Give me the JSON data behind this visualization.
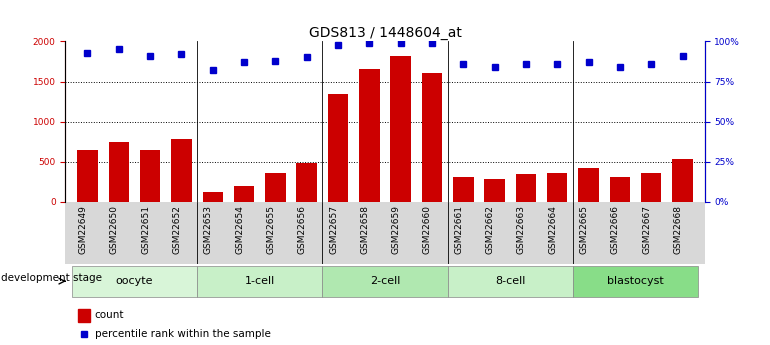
{
  "title": "GDS813 / 1448604_at",
  "samples": [
    "GSM22649",
    "GSM22650",
    "GSM22651",
    "GSM22652",
    "GSM22653",
    "GSM22654",
    "GSM22655",
    "GSM22656",
    "GSM22657",
    "GSM22658",
    "GSM22659",
    "GSM22660",
    "GSM22661",
    "GSM22662",
    "GSM22663",
    "GSM22664",
    "GSM22665",
    "GSM22666",
    "GSM22667",
    "GSM22668"
  ],
  "counts": [
    640,
    750,
    640,
    780,
    120,
    200,
    360,
    490,
    1340,
    1650,
    1820,
    1610,
    310,
    280,
    350,
    360,
    420,
    310,
    360,
    540
  ],
  "percentiles": [
    93,
    95,
    91,
    92,
    82,
    87,
    88,
    90,
    98,
    99,
    99,
    99,
    86,
    84,
    86,
    86,
    87,
    84,
    86,
    91
  ],
  "groups": [
    {
      "name": "oocyte",
      "indices": [
        0,
        1,
        2,
        3
      ],
      "color": "#d8f5d8"
    },
    {
      "name": "1-cell",
      "indices": [
        4,
        5,
        6,
        7
      ],
      "color": "#c8f0c8"
    },
    {
      "name": "2-cell",
      "indices": [
        8,
        9,
        10,
        11
      ],
      "color": "#b0e8b0"
    },
    {
      "name": "8-cell",
      "indices": [
        12,
        13,
        14,
        15
      ],
      "color": "#c8f0c8"
    },
    {
      "name": "blastocyst",
      "indices": [
        16,
        17,
        18,
        19
      ],
      "color": "#88dd88"
    }
  ],
  "bar_color": "#cc0000",
  "dot_color": "#0000cc",
  "ylim_left": [
    0,
    2000
  ],
  "ylim_right": [
    0,
    100
  ],
  "yticks_left": [
    0,
    500,
    1000,
    1500,
    2000
  ],
  "yticks_right": [
    0,
    25,
    50,
    75,
    100
  ],
  "background_color": "#ffffff",
  "grid_color": "#000000",
  "title_fontsize": 10,
  "tick_fontsize": 6.5,
  "label_fontsize": 7.5,
  "group_label_fontsize": 8
}
